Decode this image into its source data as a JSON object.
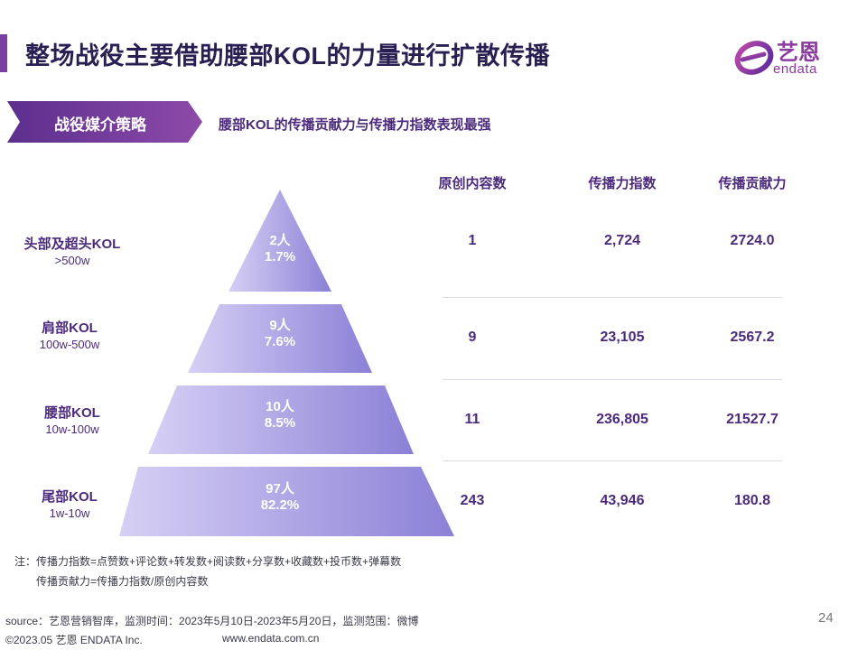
{
  "header": {
    "title": "整场战役主要借助腰部KOL的力量进行扩散传播",
    "logo_cn": "艺恩",
    "logo_en": "endata"
  },
  "section": {
    "tag": "战役媒介策略",
    "subtitle": "腰部KOL的传播贡献力与传播力指数表现最强"
  },
  "table": {
    "columns": [
      "原创内容数",
      "传播力指数",
      "传播贡献力"
    ],
    "rows": [
      {
        "name": "头部及超头KOL",
        "range": ">500w",
        "count": "2人",
        "share": "1.7%",
        "original": "1",
        "index": "2,724",
        "contribution": "2724.0"
      },
      {
        "name": "肩部KOL",
        "range": "100w-500w",
        "count": "9人",
        "share": "7.6%",
        "original": "9",
        "index": "23,105",
        "contribution": "2567.2"
      },
      {
        "name": "腰部KOL",
        "range": "10w-100w",
        "count": "10人",
        "share": "8.5%",
        "original": "11",
        "index": "236,805",
        "contribution": "21527.7"
      },
      {
        "name": "尾部KOL",
        "range": "1w-10w",
        "count": "97人",
        "share": "82.2%",
        "original": "243",
        "index": "43,946",
        "contribution": "180.8"
      }
    ]
  },
  "notes": {
    "line1": "注：传播力指数=点赞数+评论数+转发数+阅读数+分享数+收藏数+投币数+弹幕数",
    "line2": "传播贡献力=传播力指数/原创内容数"
  },
  "footer": {
    "source": "source：艺恩营销智库，监测时间：2023年5月10日-2023年5月20日，监测范围：微博",
    "copyright": "©2023.05 艺恩 ENDATA Inc.",
    "website": "www.endata.com.cn",
    "page": "24"
  },
  "colors": {
    "accent": "#7a3fa0",
    "text": "#4b2a7c",
    "pyramid_light": "#cfc8f2",
    "pyramid_dark": "#8f84d8"
  }
}
